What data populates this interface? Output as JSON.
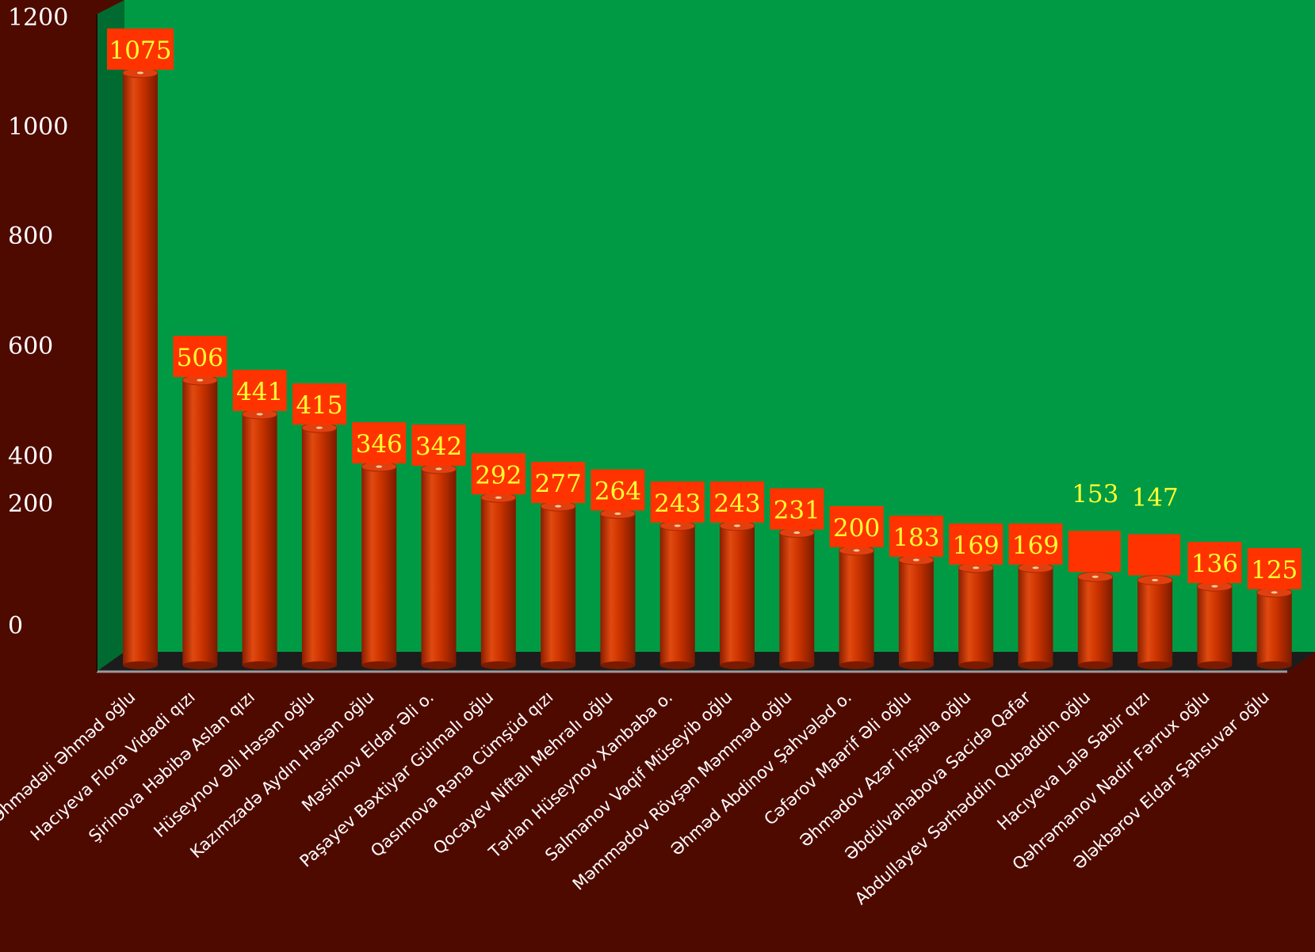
{
  "colors": {
    "background": "#4f0a00",
    "plot_area": "#009a44",
    "side_wall": "#006b30",
    "floor": "#1c1c1c",
    "bar": "#cc3300",
    "label_box": "#ff3300",
    "value_text": "#ffff33",
    "axis_text": "#ffffff"
  },
  "chart_data": {
    "type": "bar",
    "style": "3d-cylinder",
    "title": "",
    "xlabel": "",
    "ylabel": "",
    "ylim": [
      0,
      1200
    ],
    "yticks": [
      "0",
      "200",
      "400",
      "600",
      "800",
      "1000",
      "1200"
    ],
    "grid": false,
    "legend": "none",
    "categories": [
      "Əhmədəli Əhməd oğlu",
      "Hacıyeva Flora Vidadi qızı",
      "Şirinova Həbibə Aslan qızı",
      "Hüseynov Əli Həsən oğlu",
      "Kazımzadə Aydın Həsən oğlu",
      "Məsimov Eldar Əli o.",
      "Paşayev Bəxtiyar Gülmalı oğlu",
      "Qasımova Rəna Cümşüd qızı",
      "Qocayev Niftalı Mehralı oğlu",
      "Tərlan Hüseynov Xanbaba o.",
      "Salmanov Vaqif Müseyib oğlu",
      "Məmmədov Rövşən Məmməd oğlu",
      "Əhməd Abdinov Şahvələd o.",
      "Cəfərov Maarif Əli oğlu",
      "Əhmədov Azər İnşalla oğlu",
      "Əbdülvahabova Sacidə Qafar",
      "Abdullayev Sərhəddin Qubaddin oğlu",
      "Hacıyeva Lalə Sabir qızı",
      "Qəhrəmanov Nadir Fərrux oğlu",
      "Ələkbərov Eldar Şahsuvar oğlu"
    ],
    "values": [
      1075,
      506,
      441,
      415,
      346,
      342,
      292,
      277,
      264,
      243,
      243,
      231,
      200,
      183,
      169,
      169,
      153,
      147,
      136,
      125
    ],
    "data_labels": [
      "1075",
      "506",
      "441",
      "415",
      "346",
      "342",
      "292",
      "277",
      "264",
      "243",
      "243",
      "231",
      "200",
      "183",
      "169",
      "169",
      "153",
      "147",
      "136",
      "125"
    ]
  }
}
